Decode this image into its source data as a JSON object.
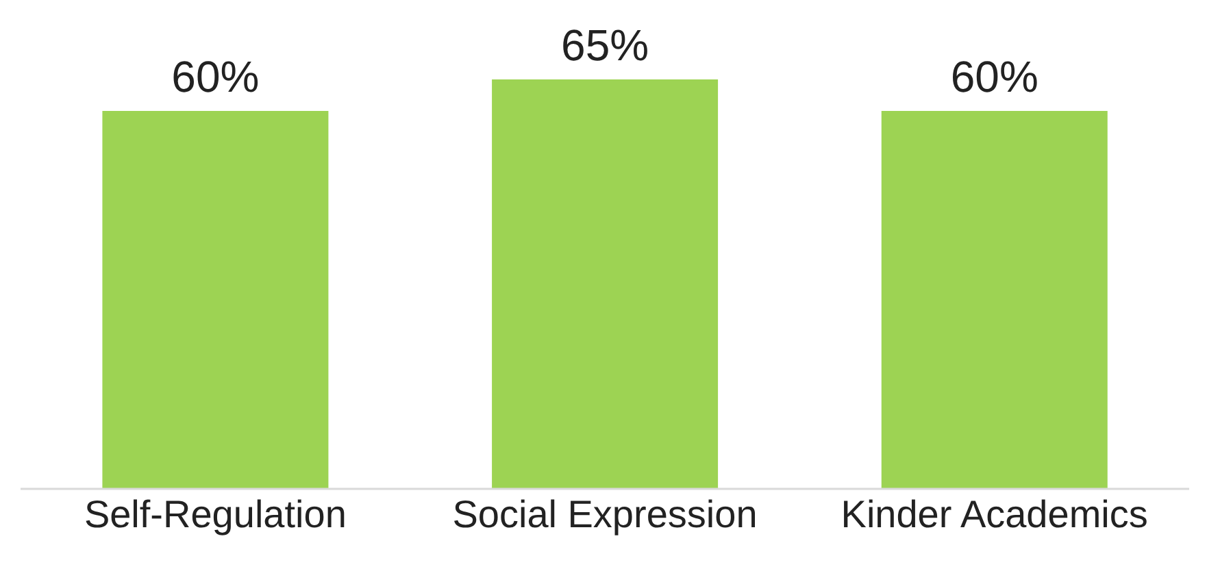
{
  "chart_data": {
    "type": "bar",
    "categories": [
      "Self-Regulation",
      "Social Expression",
      "Kinder Academics"
    ],
    "values": [
      60,
      65,
      60
    ],
    "value_labels": [
      "60%",
      "65%",
      "60%"
    ],
    "color": "#9dd353"
  }
}
